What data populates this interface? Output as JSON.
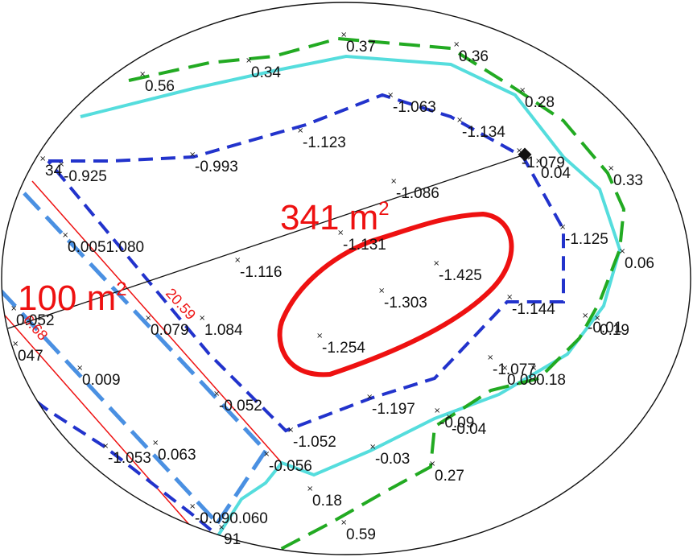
{
  "colors": {
    "background": "#ffffff",
    "outline": "#111111",
    "green_contour": "#22aa22",
    "cyan_boundary": "#55dddd",
    "blue_contour": "#2233cc",
    "red_low": "#ee1111",
    "light_blue": "#4a90e2",
    "label": "#111111"
  },
  "areas": {
    "main": {
      "value": "341 m",
      "unit_sup": "2"
    },
    "left": {
      "value": "100 m",
      "unit_sup": "2"
    }
  },
  "dimension_label": "20.59",
  "dimension_label_partial": "6.68",
  "spot_heights": [
    "0.37",
    "0.36",
    "0.56",
    "0.34",
    "0.28",
    "-1.063",
    "-1.134",
    "-1.123",
    "-1.079",
    "0.04",
    "0.33",
    "34",
    "-0.925",
    "-0.993",
    "-1.086",
    "-1.131",
    "-1.125",
    "0.06",
    "0.0051.080",
    "-1.116",
    "-1.425",
    "-1.303",
    "-1.144",
    "-0.01",
    "0.19",
    "0.052",
    "047",
    "0.079",
    "1.084",
    "-1.254",
    "-1.077",
    "0.08",
    "0.18",
    "0.009",
    "-0.052",
    "-1.197",
    "-0.09",
    "-0.04",
    "-1.052",
    "-1.053",
    "0.063",
    "-0.056",
    "-0.03",
    "0.27",
    "0.18",
    "-0.090.060",
    "91",
    "0.59"
  ]
}
